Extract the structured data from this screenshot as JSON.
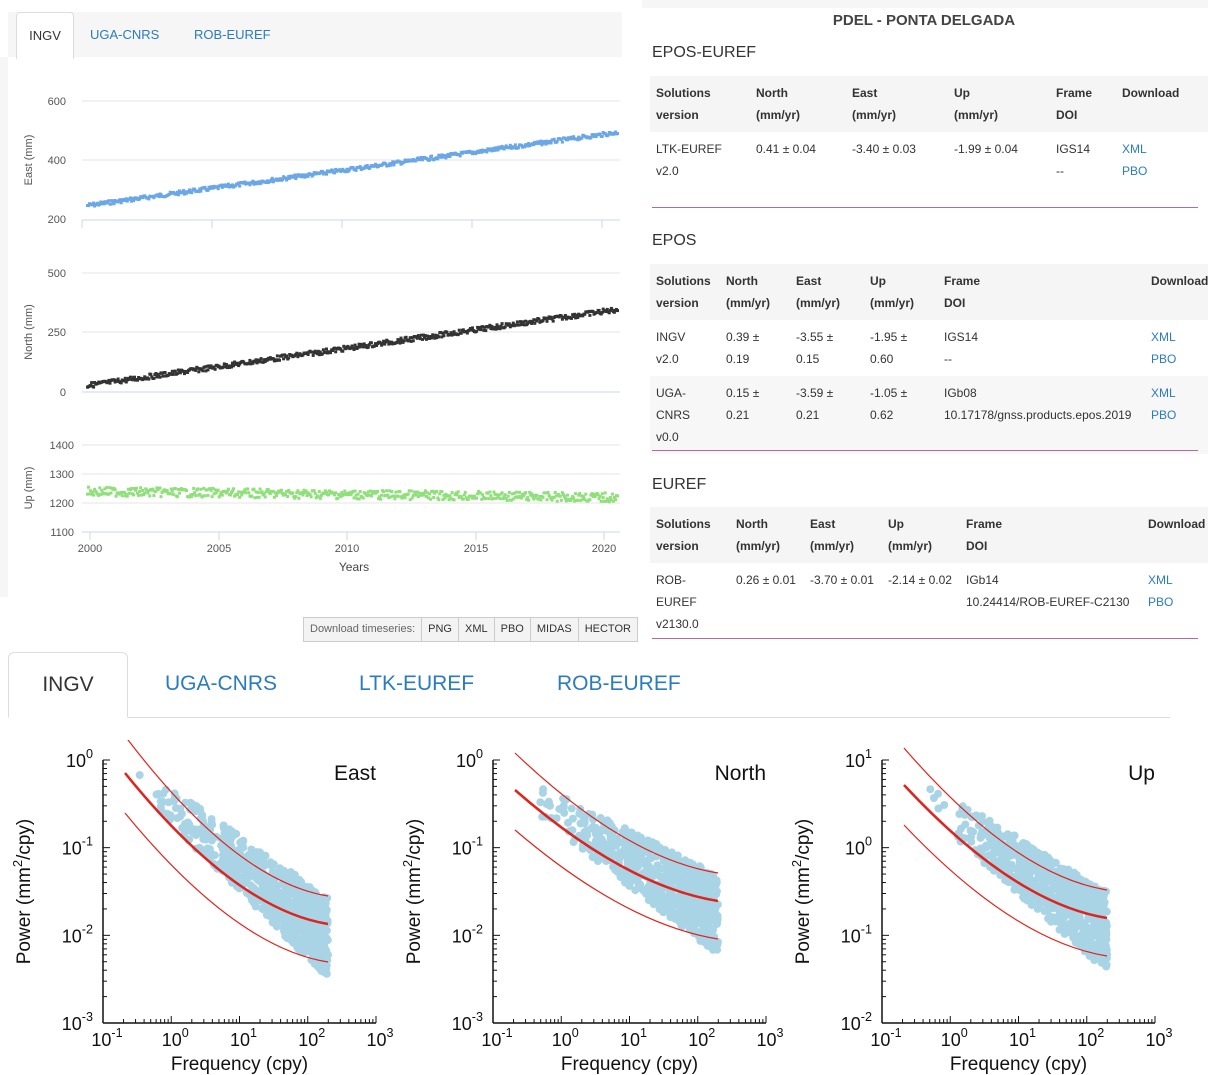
{
  "top_tabs": [
    "INGV",
    "UGA-CNRS",
    "ROB-EUREF"
  ],
  "active_top_tab": "INGV",
  "timeseries": {
    "x_label": "Years",
    "x_ticks": [
      "2000",
      "2005",
      "2010",
      "2015",
      "2020"
    ],
    "panels": [
      {
        "ylabel": "East (mm)",
        "yticks": [
          "600",
          "400",
          "200"
        ],
        "color": "#6aa7e8"
      },
      {
        "ylabel": "North (mm)",
        "yticks": [
          "500",
          "250",
          "0"
        ],
        "color": "#333333"
      },
      {
        "ylabel": "Up (mm)",
        "yticks": [
          "1400",
          "1300",
          "1200",
          "1100"
        ],
        "color": "#8fe07a"
      }
    ]
  },
  "download_bar": {
    "label": "Download timeseries:",
    "buttons": [
      "PNG",
      "XML",
      "PBO",
      "MIDAS",
      "HECTOR"
    ]
  },
  "station_title": "PDEL - PONTA DELGADA",
  "sections": [
    {
      "title": "EPOS-EUREF",
      "headers": [
        [
          "Solutions",
          "version"
        ],
        [
          "North",
          "(mm/yr)"
        ],
        [
          "East",
          "(mm/yr)"
        ],
        [
          "Up",
          "(mm/yr)"
        ],
        [
          "Frame",
          "DOI"
        ],
        [
          "Download",
          ""
        ]
      ],
      "rows": [
        {
          "solution": "LTK-EUREF",
          "version": "v2.0",
          "north": "0.41 ± 0.04",
          "east": "-3.40 ± 0.03",
          "up": "-1.99 ± 0.04",
          "frame": "IGS14",
          "doi": "--",
          "dl1": "XML",
          "dl2": "PBO"
        }
      ]
    },
    {
      "title": "EPOS",
      "headers": [
        [
          "Solutions",
          "version"
        ],
        [
          "North",
          "(mm/yr)"
        ],
        [
          "East",
          "(mm/yr)"
        ],
        [
          "Up",
          "(mm/yr)"
        ],
        [
          "Frame",
          "DOI"
        ],
        [
          "Download",
          ""
        ]
      ],
      "rows": [
        {
          "solution": "INGV",
          "version": "v2.0",
          "north": "0.39 ± 0.19",
          "east": "-3.55 ± 0.15",
          "up": "-1.95 ± 0.60",
          "frame": "IGS14",
          "doi": "--",
          "dl1": "XML",
          "dl2": "PBO"
        },
        {
          "solution": "UGA-CNRS",
          "version": "v0.0",
          "north": "0.15 ± 0.21",
          "east": "-3.59 ± 0.21",
          "up": "-1.05 ± 0.62",
          "frame": "IGb08",
          "doi": "10.17178/gnss.products.epos.2019",
          "dl1": "XML",
          "dl2": "PBO"
        }
      ]
    },
    {
      "title": "EUREF",
      "headers": [
        [
          "Solutions",
          "version"
        ],
        [
          "North",
          "(mm/yr)"
        ],
        [
          "East",
          "(mm/yr)"
        ],
        [
          "Up",
          "(mm/yr)"
        ],
        [
          "Frame",
          "DOI"
        ],
        [
          "Download",
          ""
        ]
      ],
      "rows": [
        {
          "solution": "ROB-EUREF",
          "version": "v2130.0",
          "north": "0.26 ± 0.01",
          "east": "-3.70 ± 0.01",
          "up": "-2.14 ± 0.02",
          "frame": "IGb14",
          "doi": "10.24414/ROB-EUREF-C2130",
          "dl1": "XML",
          "dl2": "PBO"
        }
      ]
    }
  ],
  "bottom_tabs": [
    "INGV",
    "UGA-CNRS",
    "LTK-EUREF",
    "ROB-EUREF"
  ],
  "active_bottom_tab": "INGV",
  "spectra": {
    "xlabel": "Frequency (cpy)",
    "ylabel_prefix": "Power (mm",
    "ylabel_sup": "2",
    "ylabel_suffix": "/cpy)",
    "x_ticks": [
      {
        "base": "10",
        "exp": "-1"
      },
      {
        "base": "10",
        "exp": "0"
      },
      {
        "base": "10",
        "exp": "1"
      },
      {
        "base": "10",
        "exp": "2"
      },
      {
        "base": "10",
        "exp": "3"
      }
    ],
    "panels": [
      {
        "title": "East",
        "y_ticks": [
          {
            "base": "10",
            "exp": "0"
          },
          {
            "base": "10",
            "exp": "-1"
          },
          {
            "base": "10",
            "exp": "-2"
          },
          {
            "base": "10",
            "exp": "-3"
          }
        ]
      },
      {
        "title": "North",
        "y_ticks": [
          {
            "base": "10",
            "exp": "0"
          },
          {
            "base": "10",
            "exp": "-1"
          },
          {
            "base": "10",
            "exp": "-2"
          },
          {
            "base": "10",
            "exp": "-3"
          }
        ]
      },
      {
        "title": "Up",
        "y_ticks": [
          {
            "base": "10",
            "exp": "1"
          },
          {
            "base": "10",
            "exp": "0"
          },
          {
            "base": "10",
            "exp": "-1"
          },
          {
            "base": "10",
            "exp": "-2"
          }
        ]
      }
    ],
    "dot_color": "#a8d4e6",
    "line_color": "#e0231c"
  }
}
